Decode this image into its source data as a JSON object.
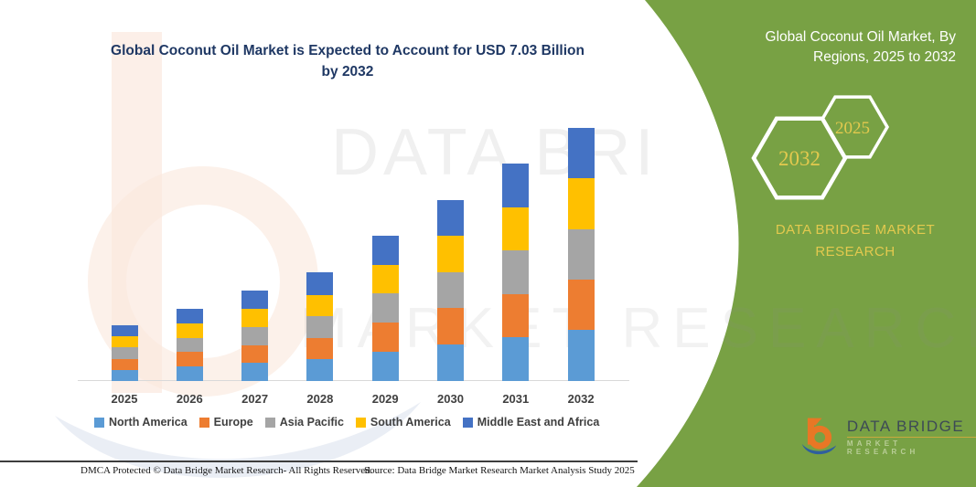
{
  "header": {
    "chart_title": "Global Coconut Oil Market is Expected to Account for USD 7.03 Billion by 2032"
  },
  "chart_data": {
    "type": "bar",
    "stacked": true,
    "title": "Global Coconut Oil Market is Expected to Account for USD 7.03 Billion by 2032",
    "unit": "USD Billion",
    "categories": [
      "2025",
      "2026",
      "2027",
      "2028",
      "2029",
      "2030",
      "2031",
      "2032"
    ],
    "series": [
      {
        "name": "North America",
        "color": "#5B9BD5",
        "values": [
          0.31,
          0.4,
          0.5,
          0.6,
          0.81,
          1.01,
          1.21,
          1.41
        ]
      },
      {
        "name": "Europe",
        "color": "#ED7D31",
        "values": [
          0.31,
          0.4,
          0.5,
          0.6,
          0.81,
          1.01,
          1.21,
          1.41
        ]
      },
      {
        "name": "Asia Pacific",
        "color": "#A5A5A5",
        "values": [
          0.31,
          0.4,
          0.5,
          0.6,
          0.81,
          1.01,
          1.21,
          1.4
        ]
      },
      {
        "name": "South America",
        "color": "#FFC000",
        "values": [
          0.31,
          0.4,
          0.5,
          0.6,
          0.8,
          1.0,
          1.2,
          1.4
        ]
      },
      {
        "name": "Middle East and Africa",
        "color": "#4472C4",
        "values": [
          0.31,
          0.41,
          0.51,
          0.62,
          0.8,
          1.0,
          1.2,
          1.41
        ]
      }
    ],
    "totals_estimated": [
      1.55,
      2.01,
      2.51,
      3.02,
      4.03,
      5.03,
      6.03,
      7.03
    ],
    "xlabel": "",
    "ylabel": "",
    "ylim": [
      0,
      7.5
    ],
    "grid": false,
    "legend_position": "bottom",
    "axis_color": "#D9D9D9",
    "label_color": "#404040",
    "title_color": "#1F3864"
  },
  "right_panel": {
    "title": "Global Coconut Oil Market, By Regions, 2025 to 2032",
    "hexagons": [
      {
        "label": "2032"
      },
      {
        "label": "2025"
      }
    ],
    "brand": "DATA BRIDGE MARKET RESEARCH",
    "logo": {
      "title": "DATA BRIDGE",
      "subtitle": "MARKET RESEARCH"
    },
    "background": "#78A144",
    "accent_gold": "#E3C94E"
  },
  "footer": {
    "dmca": "DMCA Protected © Data Bridge Market Research-  All Rights Reserved.",
    "source": "Source: Data Bridge Market Research  Market Analysis Study 2025"
  },
  "watermark": {
    "line1": "DATA BRI",
    "line2": "MARKET RESEARCH"
  }
}
